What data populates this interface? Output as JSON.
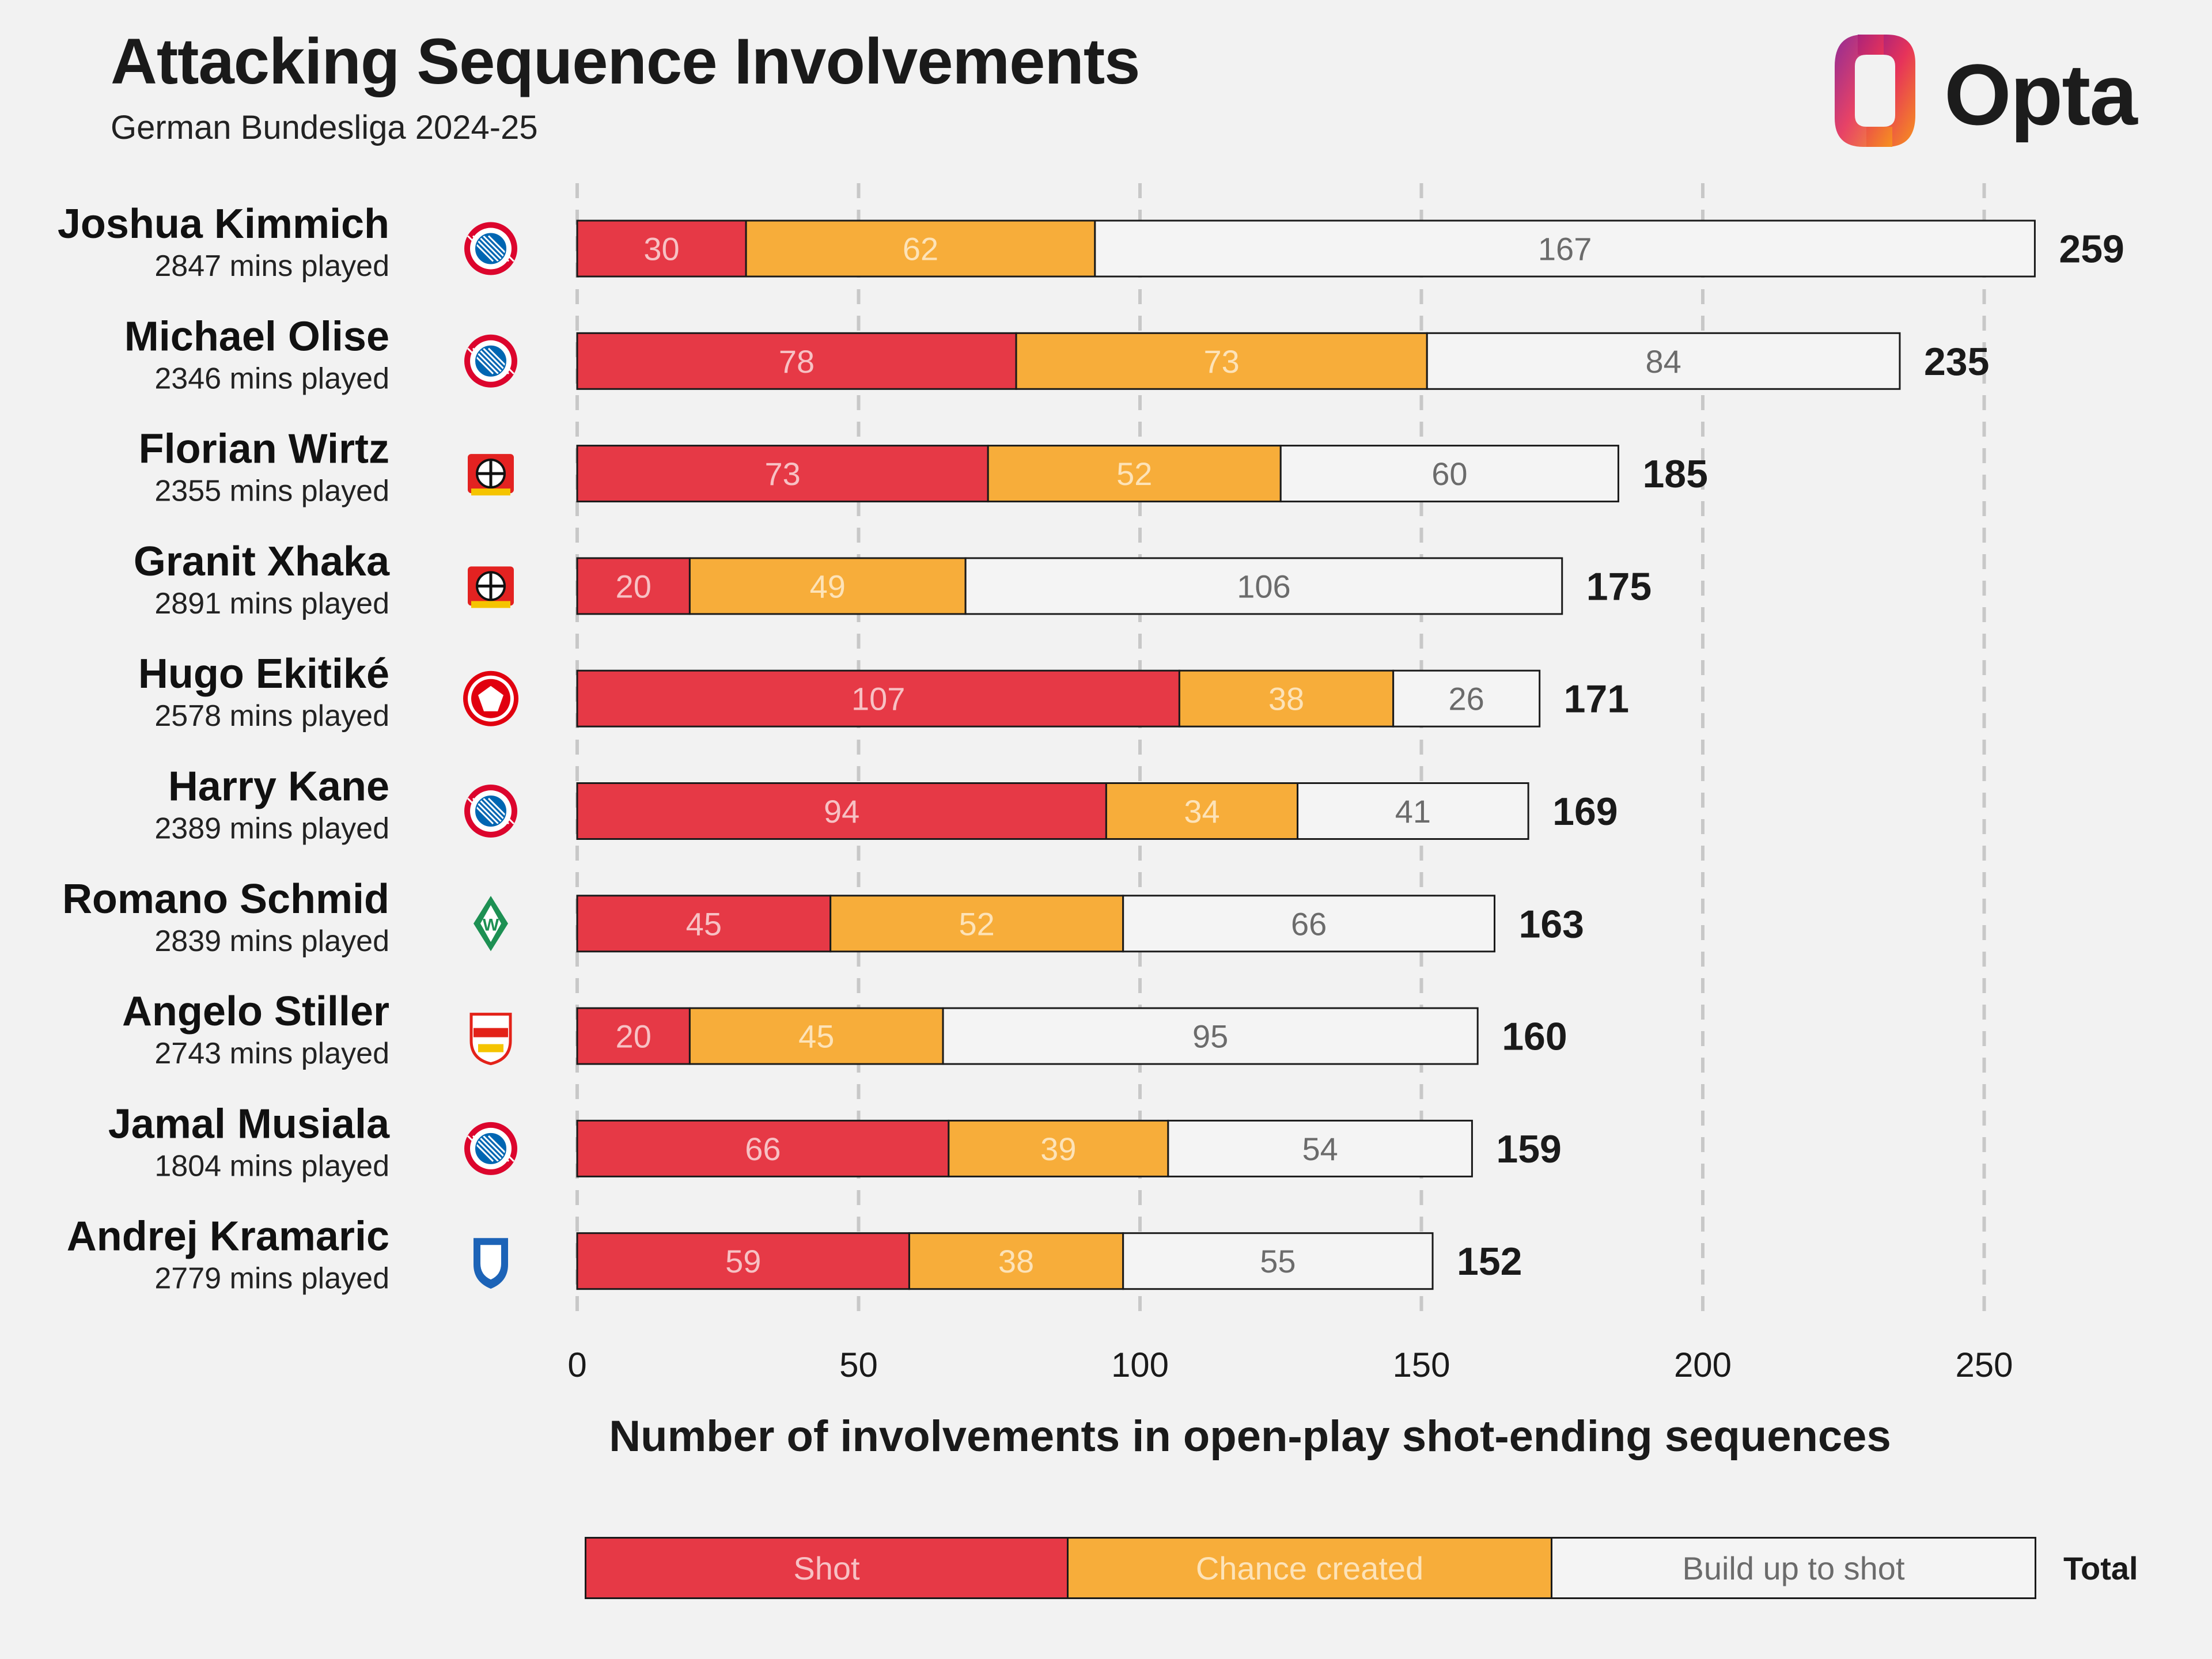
{
  "header": {
    "title": "Attacking Sequence Involvements",
    "subtitle": "German Bundesliga 2024-25",
    "logo_text": "Opta"
  },
  "colors": {
    "shot": "#e63946",
    "chance": "#f7ad3a",
    "buildup": "#f4f4f4",
    "outline": "#1a1a1a",
    "grid": "#c8c8c8"
  },
  "chart_data": {
    "type": "bar",
    "orientation": "horizontal",
    "stacked": true,
    "title": "Attacking Sequence Involvements",
    "subtitle": "German Bundesliga 2024-25",
    "xlabel": "Number of involvements in open-play shot-ending sequences",
    "ylabel": "",
    "xlim": [
      0,
      265
    ],
    "xticks": [
      0,
      50,
      100,
      150,
      200,
      250
    ],
    "grid": true,
    "series_names": [
      "Shot",
      "Chance created",
      "Build up to shot"
    ],
    "total_label": "Total",
    "players": [
      {
        "name": "Joshua Kimmich",
        "mins": "2847 mins played",
        "club": "bayern",
        "shot": 30,
        "chance": 62,
        "buildup": 167,
        "total": 259
      },
      {
        "name": "Michael Olise",
        "mins": "2346 mins played",
        "club": "bayern",
        "shot": 78,
        "chance": 73,
        "buildup": 84,
        "total": 235
      },
      {
        "name": "Florian Wirtz",
        "mins": "2355 mins played",
        "club": "leverkusen",
        "shot": 73,
        "chance": 52,
        "buildup": 60,
        "total": 185
      },
      {
        "name": "Granit Xhaka",
        "mins": "2891 mins played",
        "club": "leverkusen",
        "shot": 20,
        "chance": 49,
        "buildup": 106,
        "total": 175
      },
      {
        "name": "Hugo Ekitiké",
        "mins": "2578 mins played",
        "club": "frankfurt",
        "shot": 107,
        "chance": 38,
        "buildup": 26,
        "total": 171
      },
      {
        "name": "Harry Kane",
        "mins": "2389 mins played",
        "club": "bayern",
        "shot": 94,
        "chance": 34,
        "buildup": 41,
        "total": 169
      },
      {
        "name": "Romano Schmid",
        "mins": "2839 mins played",
        "club": "bremen",
        "shot": 45,
        "chance": 52,
        "buildup": 66,
        "total": 163
      },
      {
        "name": "Angelo Stiller",
        "mins": "2743 mins played",
        "club": "stuttgart",
        "shot": 20,
        "chance": 45,
        "buildup": 95,
        "total": 160
      },
      {
        "name": "Jamal Musiala",
        "mins": "1804 mins played",
        "club": "bayern",
        "shot": 66,
        "chance": 39,
        "buildup": 54,
        "total": 159
      },
      {
        "name": "Andrej Kramaric",
        "mins": "2779 mins played",
        "club": "hoffenheim",
        "shot": 59,
        "chance": 38,
        "buildup": 55,
        "total": 152
      }
    ]
  }
}
